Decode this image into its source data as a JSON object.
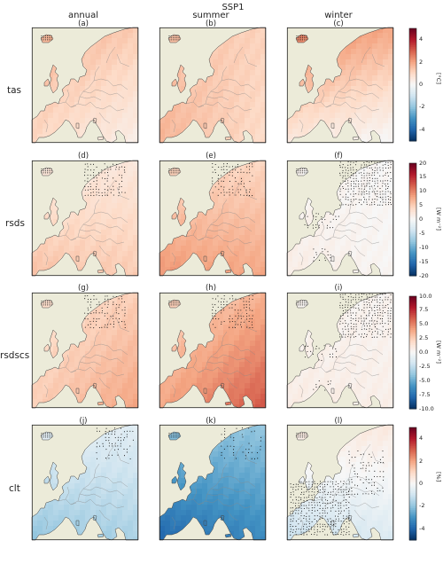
{
  "header": {
    "scenario": "SSP1",
    "columns": [
      "annual",
      "summer",
      "winter"
    ]
  },
  "panel_labels": [
    "(a)",
    "(b)",
    "(c)",
    "(d)",
    "(e)",
    "(f)",
    "(g)",
    "(h)",
    "(i)",
    "(j)",
    "(k)",
    "(l)"
  ],
  "chart_data": [
    {
      "type": "heatmap",
      "variable": "tas",
      "unit": "[°C]",
      "colorbar_ticks": [
        "4",
        "2",
        "0",
        "-2",
        "-4"
      ],
      "range": [
        -5,
        5
      ],
      "panels": [
        {
          "label": "(a)",
          "season": "annual",
          "north": 1.8,
          "south": 1.0,
          "east": 0.5,
          "hatch": "iceland"
        },
        {
          "label": "(b)",
          "season": "summer",
          "north": 1.5,
          "south": 1.7,
          "east": 0.6,
          "hatch": "iceland"
        },
        {
          "label": "(c)",
          "season": "winter",
          "north": 2.6,
          "south": 0.5,
          "east": 0.8,
          "hatch": "iceland"
        }
      ]
    },
    {
      "type": "heatmap",
      "variable": "rsds",
      "unit": "[W m⁻²]",
      "colorbar_ticks": [
        "20",
        "15",
        "10",
        "5",
        "0",
        "-5",
        "-10",
        "-15",
        "-20"
      ],
      "range": [
        -20,
        20
      ],
      "panels": [
        {
          "label": "(d)",
          "season": "annual",
          "north": 2,
          "south": 6,
          "east": 3,
          "hatch": "north"
        },
        {
          "label": "(e)",
          "season": "summer",
          "north": 4,
          "south": 9,
          "east": 5,
          "hatch": "north"
        },
        {
          "label": "(f)",
          "season": "winter",
          "north": 0.5,
          "south": 1.5,
          "east": -0.5,
          "hatch": "winter"
        }
      ]
    },
    {
      "type": "heatmap",
      "variable": "rsdscs",
      "unit": "[W m⁻²]",
      "colorbar_ticks": [
        "10.0",
        "7.5",
        "5.0",
        "2.5",
        "0.0",
        "-2.5",
        "-5.0",
        "-7.5",
        "-10.0"
      ],
      "range": [
        -10,
        10
      ],
      "panels": [
        {
          "label": "(g)",
          "season": "annual",
          "north": 1.5,
          "south": 2.5,
          "east": 4,
          "hatch": "north"
        },
        {
          "label": "(h)",
          "season": "summer",
          "north": 2,
          "south": 4,
          "east": 6,
          "hatch": "north"
        },
        {
          "label": "(i)",
          "season": "winter",
          "north": 0.3,
          "south": 0.8,
          "east": 0.3,
          "hatch": "winter"
        }
      ]
    },
    {
      "type": "heatmap",
      "variable": "clt",
      "unit": "[%]",
      "colorbar_ticks": [
        "4",
        "2",
        "0",
        "-2",
        "-4"
      ],
      "range": [
        -5,
        5
      ],
      "panels": [
        {
          "label": "(j)",
          "season": "annual",
          "north": -0.5,
          "south": -2.0,
          "east": -0.8,
          "hatch": "clt"
        },
        {
          "label": "(k)",
          "season": "summer",
          "north": -2.0,
          "south": -4.0,
          "east": -2.0,
          "hatch": "clt"
        },
        {
          "label": "(l)",
          "season": "winter",
          "north": 0.6,
          "south": -1.2,
          "east": 0.3,
          "hatch": "cltw"
        }
      ]
    }
  ]
}
